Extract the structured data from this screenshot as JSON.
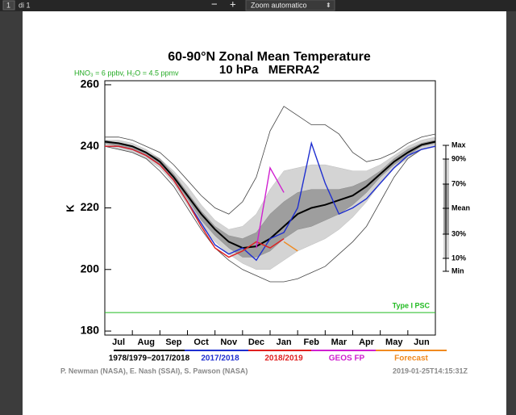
{
  "toolbar": {
    "page": "1",
    "of": "di 1",
    "zoom_out": "−",
    "zoom_in": "+",
    "zoom": "Zoom automatico"
  },
  "chart_data": {
    "type": "line",
    "title": "60-90°N Zonal Mean Temperature",
    "subtitle": "10 hPa   MERRA2",
    "annotation": "HNO₃ = 6 ppbv, H₂O = 4.5 ppmv",
    "y_label": "K",
    "categories": [
      "Jul",
      "Aug",
      "Sep",
      "Oct",
      "Nov",
      "Dec",
      "Jan",
      "Feb",
      "Mar",
      "Apr",
      "May",
      "Jun"
    ],
    "x": [
      0,
      0.5,
      1,
      1.5,
      2,
      2.5,
      3,
      3.5,
      4,
      4.5,
      5,
      5.5,
      6,
      6.5,
      7,
      7.5,
      8,
      8.5,
      9,
      9.5,
      10,
      10.5,
      11,
      11.5,
      12
    ],
    "xlim": [
      0,
      12
    ],
    "ylim": [
      178.7,
      261.3
    ],
    "yticks": [
      180,
      200,
      220,
      240,
      260
    ],
    "grid": false,
    "climatology_label": "1978/1979−2017/2018",
    "series": [
      {
        "name": "Max",
        "color": "#444444",
        "values": [
          243,
          243,
          242,
          240,
          238,
          234,
          229,
          224,
          220,
          218,
          222,
          230,
          245,
          253,
          250,
          247,
          247,
          244,
          238,
          235,
          236,
          238,
          241,
          243,
          244
        ]
      },
      {
        "name": "90%",
        "color": "#bdbdbd",
        "values": [
          242,
          242,
          241,
          239,
          236,
          232,
          227,
          221,
          216,
          213,
          214,
          218,
          226,
          232,
          233,
          234,
          234,
          233,
          232,
          232,
          234,
          237,
          240,
          242,
          243
        ]
      },
      {
        "name": "70%",
        "color": "#8c8c8c",
        "values": [
          242,
          241,
          240,
          238,
          236,
          231,
          225,
          219,
          214,
          211,
          210,
          212,
          218,
          222,
          225,
          226,
          226,
          226,
          227,
          229,
          232,
          236,
          239,
          241,
          242
        ]
      },
      {
        "name": "Mean",
        "color": "#000000",
        "values": [
          241.5,
          241,
          240,
          238,
          235,
          230,
          224,
          218,
          213,
          209,
          207,
          207.5,
          210,
          214,
          218,
          220,
          221,
          222.5,
          224,
          227,
          231,
          235,
          238,
          240.5,
          241.5
        ]
      },
      {
        "name": "30%",
        "color": "#8c8c8c",
        "values": [
          241,
          240,
          239,
          237,
          234,
          229,
          223,
          216,
          211,
          207,
          204,
          204,
          206,
          210,
          213,
          214,
          216,
          218,
          221,
          225,
          230,
          234,
          237,
          240,
          241
        ]
      },
      {
        "name": "10%",
        "color": "#bdbdbd",
        "values": [
          240,
          239,
          238,
          236,
          233,
          228,
          221,
          214,
          209,
          205,
          202,
          200,
          200,
          203,
          206,
          208,
          210,
          213,
          217,
          222,
          228,
          233,
          236,
          239,
          240
        ]
      },
      {
        "name": "Min",
        "color": "#444444",
        "values": [
          240,
          239,
          238,
          236,
          232,
          227,
          220,
          213,
          207,
          203,
          200,
          198,
          196,
          196,
          197,
          199,
          201,
          205,
          209,
          214,
          222,
          230,
          236,
          239,
          240
        ]
      },
      {
        "name": "2017/2018",
        "color": "#1f2fd0",
        "values": [
          240,
          240,
          239,
          237,
          234,
          229,
          222,
          215,
          208,
          205,
          207,
          203,
          210,
          212,
          220,
          241,
          228,
          218,
          220,
          223,
          228,
          233,
          237,
          239,
          240
        ]
      },
      {
        "name": "2018/2019",
        "color": "#e02020",
        "values": [
          240,
          240,
          239,
          237,
          234,
          229,
          222,
          214,
          207,
          204,
          206,
          209,
          207,
          210,
          null,
          null,
          null,
          null,
          null,
          null,
          null,
          null,
          null,
          null,
          null
        ]
      },
      {
        "name": "GEOS FP",
        "color": "#d020d0",
        "values": [
          null,
          null,
          null,
          null,
          null,
          null,
          null,
          null,
          null,
          null,
          null,
          207,
          233,
          225,
          null,
          null,
          null,
          null,
          null,
          null,
          null,
          null,
          null,
          null,
          null
        ]
      },
      {
        "name": "Forecast",
        "color": "#f08a20",
        "values": [
          null,
          null,
          null,
          null,
          null,
          null,
          null,
          null,
          null,
          null,
          null,
          null,
          null,
          209,
          206,
          null,
          null,
          null,
          null,
          null,
          null,
          null,
          null,
          null,
          null
        ]
      }
    ],
    "psc": {
      "label": "Type I PSC",
      "value": 186,
      "color": "#22bb22"
    },
    "credits": "P. Newman (NASA), E. Nash (SSAI), S. Pawson (NASA)",
    "timestamp": "2019-01-25T14:15:31Z"
  }
}
